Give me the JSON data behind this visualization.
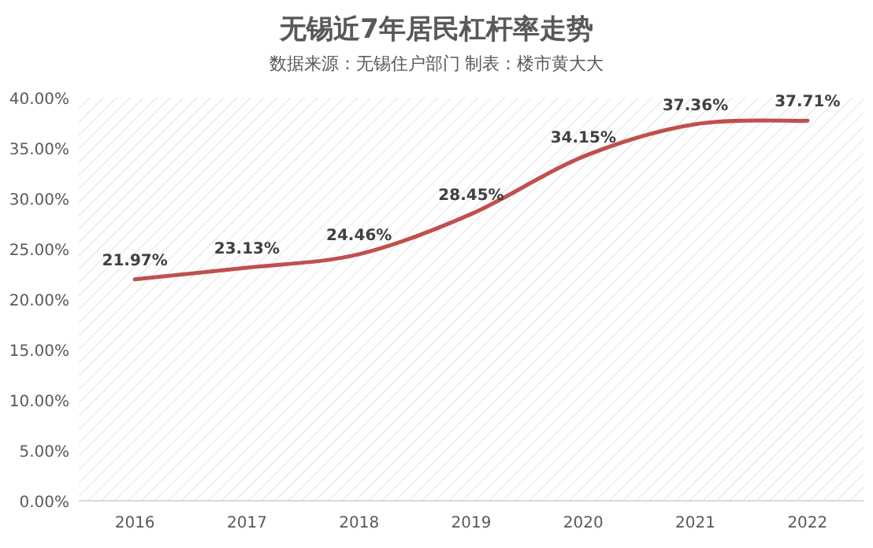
{
  "chart_data": {
    "type": "line",
    "title": "无锡近7年居民杠杆率走势",
    "subtitle": "数据来源：无锡住户部门 制表：楼市黄大大",
    "categories": [
      "2016",
      "2017",
      "2018",
      "2019",
      "2020",
      "2021",
      "2022"
    ],
    "series": [
      {
        "color": "#c0504d",
        "values": [
          21.97,
          23.13,
          24.46,
          28.45,
          34.15,
          37.36,
          37.71
        ],
        "value_labels": [
          "21.97%",
          "23.13%",
          "24.46%",
          "28.45%",
          "34.15%",
          "37.36%",
          "37.71%"
        ]
      }
    ],
    "ylim": [
      0,
      40
    ],
    "yticks": [
      {
        "value": 0,
        "label": "0.00%"
      },
      {
        "value": 5,
        "label": "5.00%"
      },
      {
        "value": 10,
        "label": "10.00%"
      },
      {
        "value": 15,
        "label": "15.00%"
      },
      {
        "value": 20,
        "label": "20.00%"
      },
      {
        "value": 25,
        "label": "25.00%"
      },
      {
        "value": 30,
        "label": "30.00%"
      },
      {
        "value": 35,
        "label": "35.00%"
      },
      {
        "value": 40,
        "label": "40.00%"
      }
    ],
    "marker": "none",
    "line_style": "solid"
  }
}
